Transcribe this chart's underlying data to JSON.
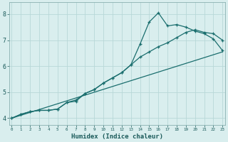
{
  "xlabel": "Humidex (Indice chaleur)",
  "bg_color": "#d9eeee",
  "grid_color": "#b8d8d8",
  "line_color": "#1a6e6e",
  "x_ticks": [
    0,
    1,
    2,
    3,
    4,
    5,
    6,
    7,
    8,
    9,
    10,
    11,
    12,
    13,
    14,
    15,
    16,
    17,
    18,
    19,
    20,
    21,
    22,
    23
  ],
  "y_ticks": [
    4,
    5,
    6,
    7,
    8
  ],
  "xlim": [
    -0.3,
    23.3
  ],
  "ylim": [
    3.75,
    8.45
  ],
  "line1_x": [
    0,
    1,
    2,
    3,
    4,
    5,
    6,
    7,
    8,
    9,
    10,
    11,
    12,
    13,
    14,
    15,
    16,
    17,
    18,
    19,
    20,
    21,
    22,
    23
  ],
  "line1_y": [
    4.0,
    4.15,
    4.25,
    4.3,
    4.3,
    4.35,
    4.6,
    4.65,
    4.95,
    5.1,
    5.35,
    5.55,
    5.75,
    6.05,
    6.35,
    6.55,
    6.75,
    6.9,
    7.1,
    7.3,
    7.4,
    7.3,
    7.25,
    7.0
  ],
  "line2_x": [
    0,
    1,
    2,
    3,
    4,
    5,
    6,
    7,
    8,
    9,
    10,
    11,
    12,
    13,
    14,
    15,
    16,
    17,
    18,
    19,
    20,
    21,
    22,
    23
  ],
  "line2_y": [
    4.0,
    4.15,
    4.25,
    4.3,
    4.3,
    4.35,
    4.6,
    4.7,
    4.95,
    5.1,
    5.35,
    5.55,
    5.75,
    6.05,
    6.85,
    7.7,
    8.05,
    7.55,
    7.6,
    7.5,
    7.35,
    7.25,
    7.05,
    6.6
  ],
  "line3_x": [
    0,
    23
  ],
  "line3_y": [
    4.0,
    6.55
  ]
}
